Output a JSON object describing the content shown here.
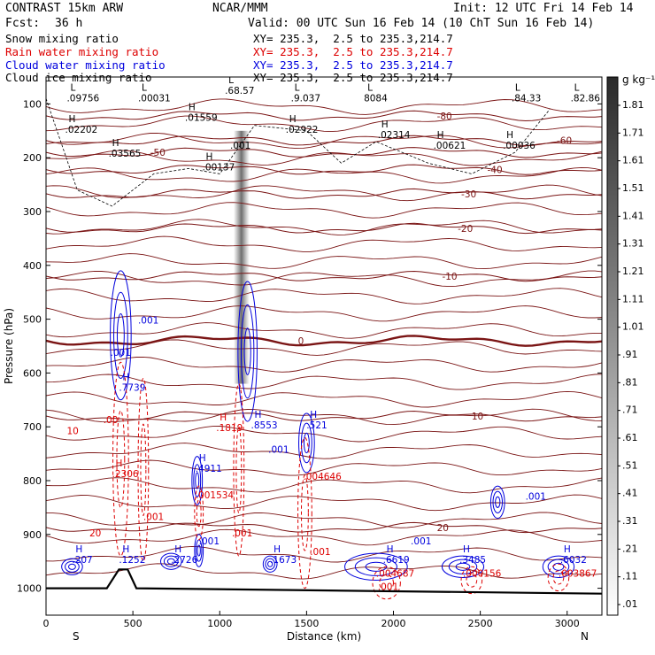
{
  "header": {
    "model": "CONTRAST 15km ARW",
    "center": "NCAR/MMM",
    "init": "Init: 12 UTC Fri 14 Feb 14",
    "fcst_label": "Fcst:",
    "fcst_value": "36 h",
    "valid": "Valid: 00 UTC Sun 16 Feb 14 (10 ChT Sun 16 Feb 14)"
  },
  "legend": [
    {
      "field": "Snow mixing ratio",
      "xy": "XY= 235.3,  2.5 to 235.3,214.7",
      "color": "#000000"
    },
    {
      "field": "Rain water mixing ratio",
      "xy": "XY= 235.3,  2.5 to 235.3,214.7",
      "color": "#dd0000"
    },
    {
      "field": "Cloud water mixing ratio",
      "xy": "XY= 235.3,  2.5 to 235.3,214.7",
      "color": "#0000dd"
    },
    {
      "field": "Cloud ice mixing ratio",
      "xy": "XY= 235.3,  2.5 to 235.3,214.7",
      "color": "#000000"
    }
  ],
  "colorbar": {
    "unit": "g kg⁻¹",
    "labels": [
      "1.81",
      "1.71",
      "1.61",
      "1.51",
      "1.41",
      "1.31",
      "1.21",
      "1.11",
      "1.01",
      ".91",
      ".81",
      ".71",
      ".61",
      ".51",
      ".41",
      ".31",
      ".21",
      ".11",
      ".01"
    ]
  },
  "chart_data": {
    "type": "heatmap",
    "title": "",
    "xlabel": "Distance (km)",
    "ylabel": "Pressure (hPa)",
    "xlim": [
      0,
      3200
    ],
    "ylim": [
      1050,
      50
    ],
    "x_ticks": [
      0,
      500,
      1000,
      1500,
      2000,
      2500,
      3000
    ],
    "y_ticks": [
      100,
      200,
      300,
      400,
      500,
      600,
      700,
      800,
      900,
      1000
    ],
    "x_end_labels": {
      "left": "S",
      "right": "N"
    },
    "temperature_isotherms": [
      {
        "label": "-80",
        "pressure": 122,
        "label_x": 2250
      },
      {
        "label": "-60",
        "pressure": 168,
        "label_x": 2940
      },
      {
        "label": "-50",
        "pressure": 190,
        "label_x": 600
      },
      {
        "label": "-40",
        "pressure": 222,
        "label_x": 2540
      },
      {
        "label": "-30",
        "pressure": 267,
        "label_x": 2390
      },
      {
        "label": "-20",
        "pressure": 331,
        "label_x": 2370
      },
      {
        "label": "-10",
        "pressure": 420,
        "label_x": 2280
      },
      {
        "label": "0",
        "pressure": 540,
        "label_x": 1450
      },
      {
        "label": "10",
        "pressure": 680,
        "label_x": 2450
      },
      {
        "label": "20",
        "pressure": 887,
        "label_x": 2250
      }
    ],
    "surface_pressure": [
      {
        "x": 0,
        "p": 1000
      },
      {
        "x": 350,
        "p": 1000
      },
      {
        "x": 420,
        "p": 965
      },
      {
        "x": 470,
        "p": 965
      },
      {
        "x": 520,
        "p": 1000
      },
      {
        "x": 3200,
        "p": 1010
      }
    ],
    "extrema": [
      {
        "series": "cloud ice",
        "label": "L",
        "value": ".09756",
        "x": 140,
        "p": 92
      },
      {
        "series": "cloud ice",
        "label": "L",
        "value": ".00031",
        "x": 550,
        "p": 92
      },
      {
        "series": "cloud ice",
        "label": "L",
        "value": ".68.57",
        "x": 1050,
        "p": 78
      },
      {
        "series": "cloud ice",
        "label": "L",
        "value": ".9.037",
        "x": 1430,
        "p": 92
      },
      {
        "series": "cloud ice",
        "label": "L",
        "value": "8084",
        "x": 1850,
        "p": 92
      },
      {
        "series": "cloud ice",
        "label": "L",
        "value": ".84.33",
        "x": 2700,
        "p": 92
      },
      {
        "series": "cloud ice",
        "label": "L",
        "value": ".82.86",
        "x": 3040,
        "p": 92
      },
      {
        "series": "cloud ice",
        "label": "H",
        "value": ".02202",
        "x": 130,
        "p": 150
      },
      {
        "series": "cloud ice",
        "label": "H",
        "value": ".01559",
        "x": 820,
        "p": 128
      },
      {
        "series": "cloud ice",
        "label": "H",
        "value": ".02922",
        "x": 1400,
        "p": 150
      },
      {
        "series": "cloud ice",
        "label": "H",
        "value": ".02314",
        "x": 1930,
        "p": 160
      },
      {
        "series": "cloud ice",
        "label": "H",
        "value": ".00621",
        "x": 2250,
        "p": 180
      },
      {
        "series": "cloud ice",
        "label": "H",
        "value": ".00036",
        "x": 2650,
        "p": 180
      },
      {
        "series": "cloud ice",
        "label": "H",
        "value": ".03565",
        "x": 380,
        "p": 195
      },
      {
        "series": "cloud ice",
        "label": "H",
        "value": ".00137",
        "x": 920,
        "p": 220
      },
      {
        "series": "cloud ice",
        "label": "",
        "value": ".001",
        "x": 1080,
        "p": 180
      },
      {
        "series": "cloud water",
        "label": "",
        "value": ".001",
        "x": 550,
        "p": 505
      },
      {
        "series": "cloud water",
        "label": "",
        "value": ".001",
        "x": 390,
        "p": 565
      },
      {
        "series": "cloud water",
        "label": "H",
        "value": ".7739",
        "x": 440,
        "p": 630
      },
      {
        "series": "cloud water",
        "label": "H",
        "value": ".8553",
        "x": 1200,
        "p": 700
      },
      {
        "series": "cloud water",
        "label": "H",
        "value": ".521",
        "x": 1520,
        "p": 700
      },
      {
        "series": "cloud water",
        "label": "",
        "value": ".001",
        "x": 1300,
        "p": 745
      },
      {
        "series": "cloud water",
        "label": "H",
        "value": ".4911",
        "x": 880,
        "p": 780
      },
      {
        "series": "cloud water",
        "label": "",
        "value": ".001",
        "x": 2780,
        "p": 832
      },
      {
        "series": "cloud water",
        "label": "",
        "value": ".001",
        "x": 900,
        "p": 915
      },
      {
        "series": "cloud water",
        "label": "",
        "value": ".001",
        "x": 2120,
        "p": 915
      },
      {
        "series": "cloud water",
        "label": "H",
        "value": ".207",
        "x": 170,
        "p": 950
      },
      {
        "series": "cloud water",
        "label": "H",
        "value": ".1252",
        "x": 440,
        "p": 950
      },
      {
        "series": "cloud water",
        "label": "H",
        "value": ".2726",
        "x": 740,
        "p": 950
      },
      {
        "series": "cloud water",
        "label": "H",
        "value": ".1673",
        "x": 1310,
        "p": 950
      },
      {
        "series": "cloud water",
        "label": "H",
        "value": ".6619",
        "x": 1960,
        "p": 950
      },
      {
        "series": "cloud water",
        "label": "H",
        "value": ".3485",
        "x": 2400,
        "p": 950
      },
      {
        "series": "cloud water",
        "label": "H",
        "value": ".6032",
        "x": 2980,
        "p": 950
      },
      {
        "series": "rain water",
        "label": "H",
        "value": ".1819",
        "x": 1000,
        "p": 705
      },
      {
        "series": "rain water",
        "label": "",
        "value": ".00",
        "x": 350,
        "p": 690
      },
      {
        "series": "rain water",
        "label": "",
        "value": "10",
        "x": 140,
        "p": 710
      },
      {
        "series": "rain water",
        "label": "H",
        "value": ".2306",
        "x": 400,
        "p": 790
      },
      {
        "series": "rain water",
        "label": "",
        "value": ".001534",
        "x": 880,
        "p": 830
      },
      {
        "series": "rain water",
        "label": "",
        "value": ".004646",
        "x": 1500,
        "p": 795
      },
      {
        "series": "rain water",
        "label": "",
        "value": ".001",
        "x": 580,
        "p": 870
      },
      {
        "series": "rain water",
        "label": "",
        "value": ".001",
        "x": 1090,
        "p": 900
      },
      {
        "series": "rain water",
        "label": "",
        "value": ".001",
        "x": 1540,
        "p": 935
      },
      {
        "series": "rain water",
        "label": "",
        "value": "20",
        "x": 270,
        "p": 900
      },
      {
        "series": "rain water",
        "label": "",
        "value": ".004687",
        "x": 1920,
        "p": 975
      },
      {
        "series": "rain water",
        "label": "",
        "value": ".000156",
        "x": 2420,
        "p": 975
      },
      {
        "series": "rain water",
        "label": "",
        "value": ".003867",
        "x": 2970,
        "p": 975
      },
      {
        "series": "rain water",
        "label": "",
        "value": ".001",
        "x": 1930,
        "p": 1000
      }
    ]
  }
}
